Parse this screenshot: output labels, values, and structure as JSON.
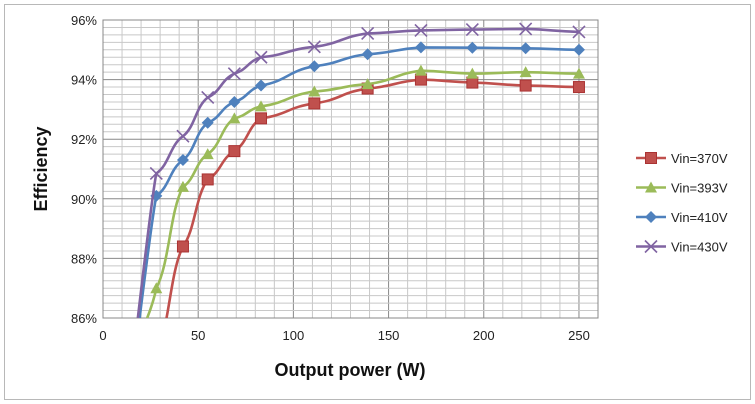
{
  "chart_data": {
    "type": "line",
    "title": "",
    "xlabel": "Output power (W)",
    "ylabel": "Efficiency",
    "xlim": [
      0,
      260
    ],
    "ylim": [
      86,
      96
    ],
    "xticks": [
      0,
      50,
      100,
      150,
      200,
      250
    ],
    "yticks": [
      "86%",
      "88%",
      "90%",
      "92%",
      "94%",
      "96%"
    ],
    "grid": true,
    "legend": "right",
    "x": [
      28,
      42,
      55,
      69,
      83,
      111,
      139,
      167,
      194,
      222,
      250
    ],
    "series": [
      {
        "name": "Vin=370V",
        "color": "#C0504D",
        "marker": "square",
        "values": [
          84.8,
          88.4,
          90.65,
          91.6,
          92.7,
          93.2,
          93.7,
          94.0,
          93.9,
          93.8,
          93.75
        ]
      },
      {
        "name": "Vin=393V",
        "color": "#9BBB59",
        "marker": "triangle",
        "values": [
          87.0,
          90.4,
          91.5,
          92.7,
          93.1,
          93.6,
          93.85,
          94.3,
          94.2,
          94.25,
          94.2
        ]
      },
      {
        "name": "Vin=410V",
        "color": "#4F81BD",
        "marker": "diamond",
        "values": [
          90.1,
          91.3,
          92.55,
          93.25,
          93.8,
          94.45,
          94.85,
          95.08,
          95.07,
          95.05,
          95.0
        ]
      },
      {
        "name": "Vin=430V",
        "color": "#8064A2",
        "marker": "x",
        "values": [
          90.85,
          92.1,
          93.4,
          94.2,
          94.75,
          95.1,
          95.55,
          95.65,
          95.68,
          95.7,
          95.6
        ]
      }
    ]
  }
}
